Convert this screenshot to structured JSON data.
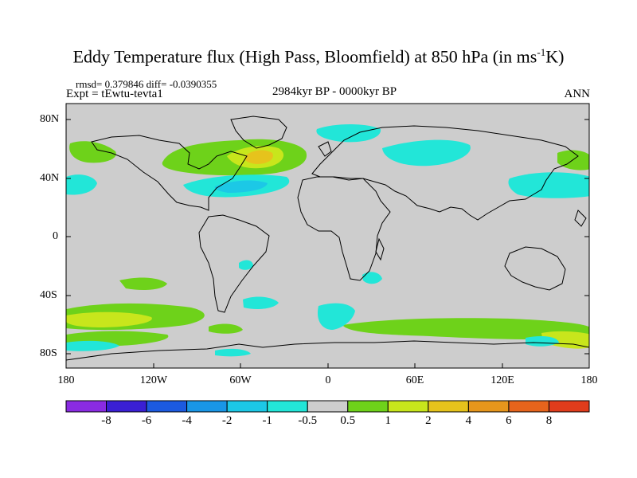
{
  "title_main": "Eddy Temperature flux (High Pass, Bloomfield) at 850 hPa (in ms",
  "title_sup": "-1",
  "title_end": "K)",
  "stats": "rmsd= 0.379846 diff= -0.0390355",
  "experiment": "Expt = tEwtu-tevta1",
  "period": "2984kyr BP - 0000kyr BP",
  "season": "ANN",
  "lat_labels": [
    "80N",
    "40N",
    "0",
    "40S",
    "80S"
  ],
  "lon_labels": [
    "180",
    "120W",
    "60W",
    "0",
    "60E",
    "120E",
    "180"
  ],
  "colorbar": {
    "labels": [
      "-8",
      "-6",
      "-4",
      "-2",
      "-1",
      "-0.5",
      "0.5",
      "1",
      "2",
      "4",
      "6",
      "8"
    ],
    "colors": [
      "#8a2be2",
      "#3a1fd4",
      "#1c5ae0",
      "#1996e6",
      "#1cc8e6",
      "#22e6d8",
      "#cdcdcd",
      "#6ed21a",
      "#c8e61c",
      "#e6c31c",
      "#e6961c",
      "#e6641c",
      "#e03c1c"
    ]
  },
  "colors": {
    "land_sea_background": "#cdcdcd",
    "positive_light": "#6ed21a",
    "positive_mid": "#c8e61c",
    "positive_high": "#e6c31c",
    "negative_light": "#22e6d8",
    "negative_mid": "#1cc8e6"
  }
}
